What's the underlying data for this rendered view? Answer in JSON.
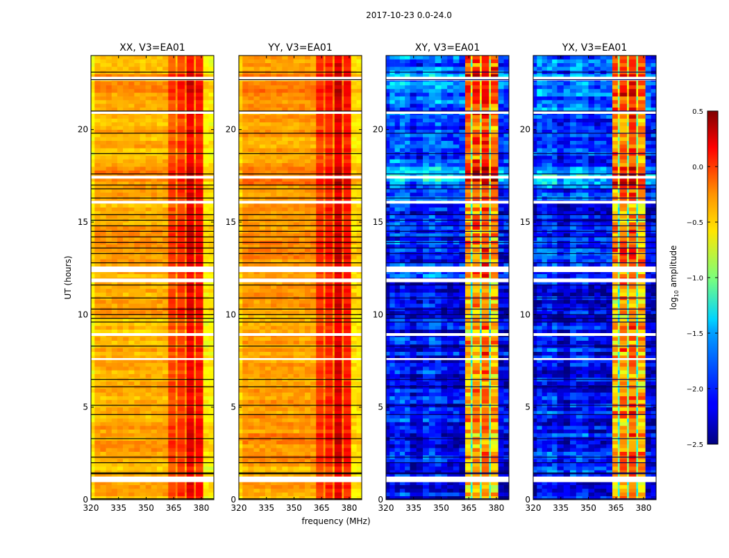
{
  "chart_data": {
    "type": "heatmap",
    "title": "2017-10-23 0.0-24.0",
    "xlabel": "frequency (MHz)",
    "ylabel": "UT (hours)",
    "xlim": [
      320,
      386.8
    ],
    "ylim": [
      0,
      24
    ],
    "xticks": [
      "320",
      "335",
      "350",
      "365",
      "380"
    ],
    "yticks": [
      "0",
      "5",
      "10",
      "15",
      "20"
    ],
    "colorbar": {
      "label_main": "log",
      "label_sub": "10",
      "label_tail": " amplitude",
      "range": [
        -2.5,
        0.5
      ],
      "ticks": [
        "0.5",
        "0.0",
        "−0.5",
        "−1.0",
        "−1.5",
        "−2.0",
        "−2.5"
      ],
      "colormap": "jet"
    },
    "flagged_hours": [
      [
        0.95,
        1.25
      ],
      [
        7.55,
        7.65
      ],
      [
        8.85,
        9.0
      ],
      [
        11.75,
        11.95
      ],
      [
        12.3,
        12.6
      ],
      [
        16.0,
        16.15
      ],
      [
        17.35,
        17.5
      ],
      [
        20.85,
        21.0
      ],
      [
        22.65,
        22.85
      ]
    ],
    "dark_lines_hours": [
      0.05,
      1.4,
      1.45,
      2.0,
      2.3,
      3.3,
      4.6,
      5.1,
      6.1,
      6.5,
      8.3,
      9.6,
      9.8,
      10.0,
      10.3,
      10.9,
      11.6,
      12.8,
      13.3,
      13.6,
      13.9,
      14.2,
      14.5,
      14.8,
      15.1,
      15.4,
      16.3,
      16.8,
      17.0,
      17.6,
      18.7,
      19.8,
      21.0,
      22.7,
      23.1
    ],
    "panels": [
      {
        "title": "XX, V3=EA01",
        "bands": [
          [
            320,
            322,
            -0.6
          ],
          [
            322,
            362,
            -0.4
          ],
          [
            362,
            366,
            -0.1
          ],
          [
            366,
            367,
            -0.35
          ],
          [
            367,
            371,
            -0.05
          ],
          [
            371,
            372,
            -0.3
          ],
          [
            372,
            376,
            0.15
          ],
          [
            376,
            377,
            -0.3
          ],
          [
            377,
            381,
            0.05
          ],
          [
            381,
            387,
            -0.6
          ]
        ],
        "hourly_offset": [
          0,
          -0.05,
          0.05,
          0.05,
          0,
          0,
          0,
          0,
          0,
          -0.05,
          0.05,
          0.05,
          0,
          0.05,
          0.05,
          0,
          0.05,
          0.1,
          0,
          0,
          0,
          0.05,
          0.1,
          0
        ],
        "noise": 0.08
      },
      {
        "title": "YY, V3=EA01",
        "bands": [
          [
            320,
            322,
            -0.5
          ],
          [
            322,
            362,
            -0.35
          ],
          [
            362,
            366,
            -0.05
          ],
          [
            366,
            367,
            -0.3
          ],
          [
            367,
            371,
            0.0
          ],
          [
            371,
            372,
            -0.3
          ],
          [
            372,
            376,
            0.2
          ],
          [
            376,
            377,
            -0.3
          ],
          [
            377,
            381,
            0.05
          ],
          [
            381,
            387,
            -0.55
          ]
        ],
        "hourly_offset": [
          0,
          -0.05,
          0.05,
          0.05,
          0,
          0,
          0,
          0,
          0,
          -0.05,
          0.05,
          0.05,
          0,
          0.05,
          0.05,
          0,
          0.05,
          0.1,
          0,
          0,
          0,
          0.05,
          0.1,
          0
        ],
        "noise": 0.08
      },
      {
        "title": "XY, V3=EA01",
        "bands": [
          [
            320,
            322,
            -2.1
          ],
          [
            322,
            333,
            -1.9
          ],
          [
            333,
            340,
            -2.1
          ],
          [
            340,
            350,
            -1.9
          ],
          [
            350,
            363,
            -2.05
          ],
          [
            363,
            366,
            -0.3
          ],
          [
            366,
            367,
            -1.0
          ],
          [
            367,
            371,
            -0.2
          ],
          [
            371,
            372,
            -0.9
          ],
          [
            372,
            376,
            -0.1
          ],
          [
            376,
            377,
            -1.0
          ],
          [
            377,
            381,
            -0.3
          ],
          [
            381,
            387,
            -2.1
          ]
        ],
        "hourly_offset": [
          -0.2,
          -0.1,
          -0.1,
          -0.1,
          -0.1,
          -0.1,
          -0.15,
          -0.1,
          -0.1,
          -0.2,
          -0.2,
          -0.15,
          0,
          0.05,
          -0.1,
          -0.1,
          0.1,
          0.4,
          0.1,
          0.05,
          0.1,
          0.2,
          0.3,
          0.1
        ],
        "noise": 0.25
      },
      {
        "title": "YX, V3=EA01",
        "bands": [
          [
            320,
            322,
            -2.1
          ],
          [
            322,
            333,
            -1.9
          ],
          [
            333,
            340,
            -2.1
          ],
          [
            340,
            350,
            -1.9
          ],
          [
            350,
            363,
            -2.05
          ],
          [
            363,
            366,
            -0.3
          ],
          [
            366,
            367,
            -1.0
          ],
          [
            367,
            371,
            -0.2
          ],
          [
            371,
            372,
            -0.9
          ],
          [
            372,
            376,
            -0.1
          ],
          [
            376,
            377,
            -1.0
          ],
          [
            377,
            381,
            -0.3
          ],
          [
            381,
            387,
            -2.1
          ]
        ],
        "hourly_offset": [
          -0.2,
          -0.1,
          -0.1,
          -0.1,
          -0.1,
          -0.1,
          -0.15,
          -0.1,
          -0.1,
          -0.2,
          -0.2,
          -0.15,
          0,
          0.05,
          -0.1,
          -0.1,
          0.1,
          0.4,
          0.1,
          0.05,
          0.1,
          0.2,
          0.3,
          0.1
        ],
        "noise": 0.25
      }
    ]
  }
}
